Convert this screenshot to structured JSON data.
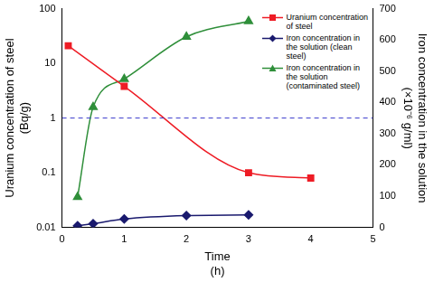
{
  "chart_data": {
    "type": "line",
    "x_label": "Time (h)",
    "y_label": "Uranium concentration of steel (Bq/g)",
    "y2_label": "Iron concentration in the solution (×10⁻⁶ g/ml)",
    "log": "y",
    "grid": false,
    "legend": "upper right",
    "xlim": [
      0,
      5
    ],
    "xticks": [
      0,
      1,
      2,
      3,
      4,
      5
    ],
    "ylim": [
      0.01,
      100
    ],
    "yticks": [
      0.01,
      0.1,
      1,
      10,
      100
    ],
    "y2lim": [
      0,
      700
    ],
    "y2ticks": [
      0,
      100,
      200,
      300,
      400,
      500,
      600,
      700
    ],
    "series": [
      {
        "name": "Uranium concentration of steel",
        "color": "#ee1c25",
        "marker": "square",
        "line_style": "solid",
        "x": [
          0.1,
          1,
          3,
          4
        ],
        "values": [
          21,
          3.8,
          0.1,
          0.08
        ]
      },
      {
        "name": "Iron concentration in the solution (clean steel)",
        "color": "#1a1a6e",
        "marker": "diamond",
        "line_style": "solid",
        "axis": "y2",
        "x": [
          0.25,
          0.5,
          1,
          2,
          3
        ],
        "values": [
          5,
          12,
          27,
          38,
          40
        ]
      },
      {
        "name": "Iron concentration in the solution (contaminated steel)",
        "color": "#2f8f3a",
        "marker": "triangle",
        "line_style": "solid",
        "axis": "y2",
        "x": [
          0.25,
          0.5,
          1,
          2,
          3
        ],
        "values": [
          97,
          385,
          475,
          610,
          660
        ]
      }
    ],
    "reference_lines": [
      {
        "axis": "y",
        "value": 1,
        "color": "#3a3acc",
        "line_style": "dashed"
      }
    ]
  }
}
